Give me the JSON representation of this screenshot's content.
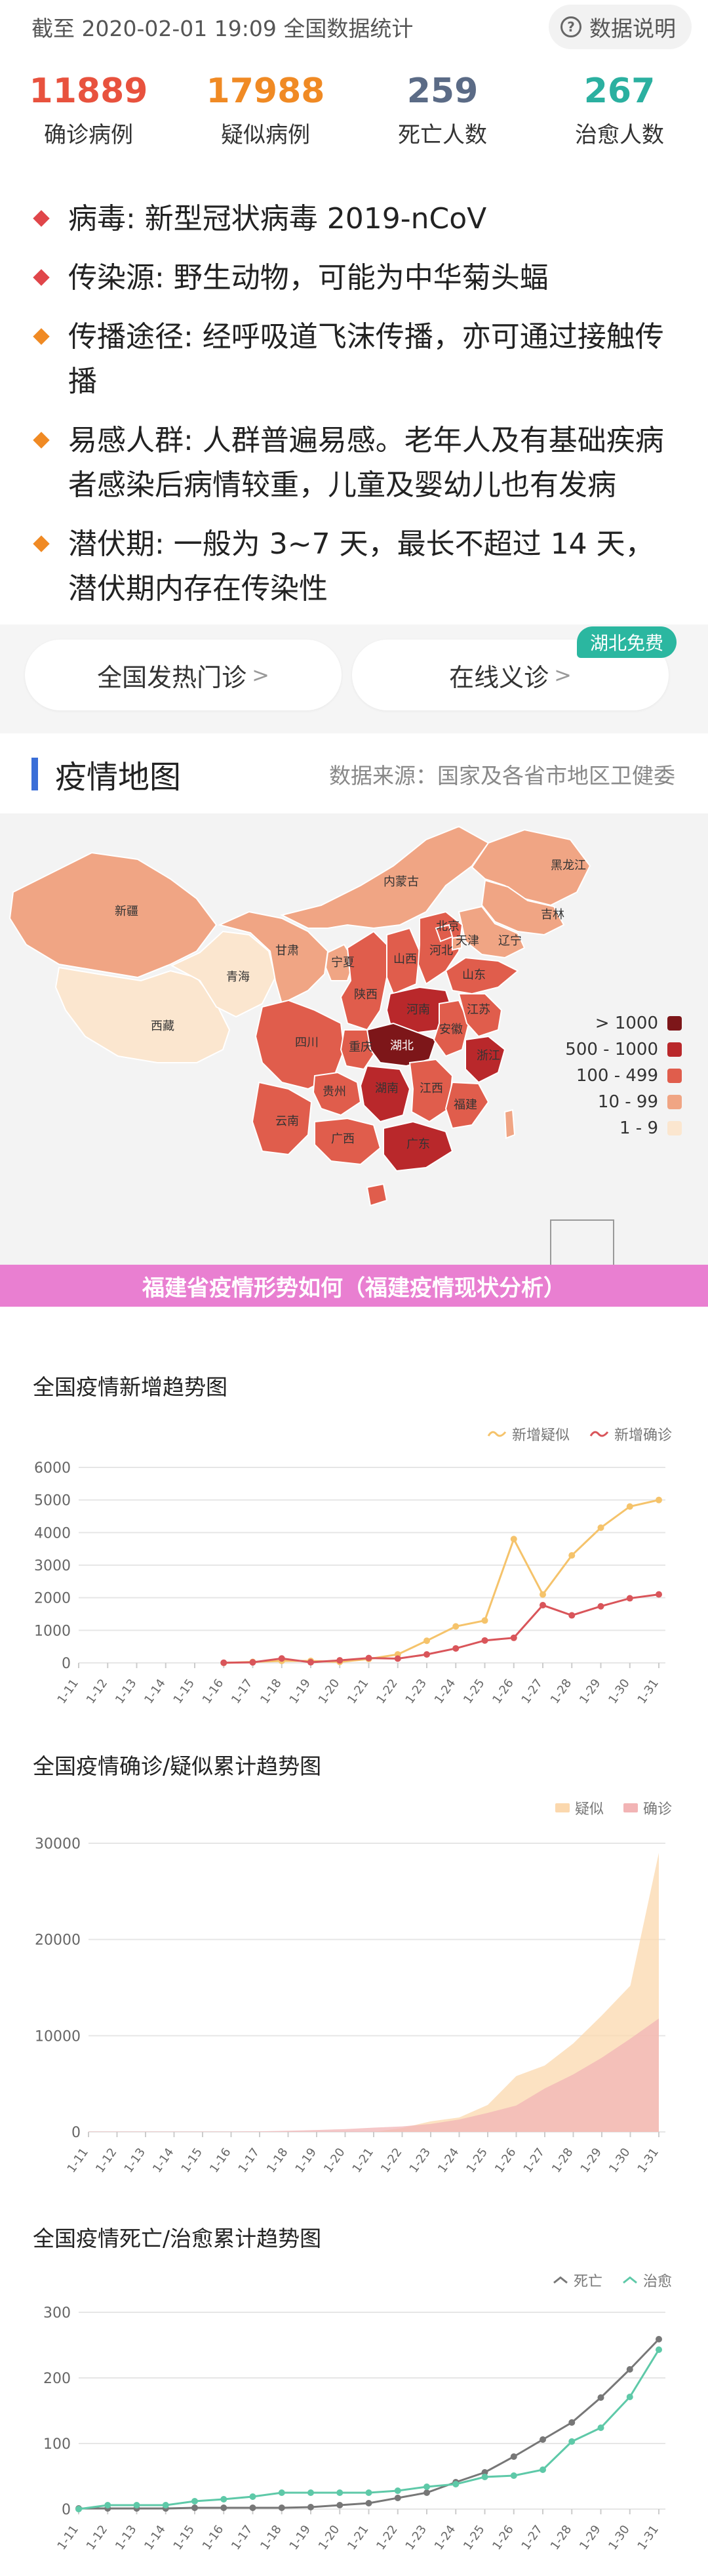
{
  "header": {
    "as_of": "截至 2020-02-01 19:09 全国数据统计",
    "help_label": "数据说明",
    "help_icon": "question-circle-icon"
  },
  "stats": [
    {
      "value": "11889",
      "label": "确诊病例",
      "color": "#e8523e"
    },
    {
      "value": "17988",
      "label": "疑似病例",
      "color": "#f08a24"
    },
    {
      "value": "259",
      "label": "死亡人数",
      "color": "#5b6b86"
    },
    {
      "value": "267",
      "label": "治愈人数",
      "color": "#2bb0a0"
    }
  ],
  "info": [
    {
      "text": "病毒: 新型冠状病毒 2019-nCoV",
      "color": "#e0464a"
    },
    {
      "text": "传染源: 野生动物，可能为中华菊头蝠",
      "color": "#e0464a"
    },
    {
      "text": "传播途径: 经呼吸道飞沫传播，亦可通过接触传播",
      "color": "#f08a24"
    },
    {
      "text": "易感人群: 人群普遍易感。老年人及有基础疾病者感染后病情较重，儿童及婴幼儿也有发病",
      "color": "#f08a24"
    },
    {
      "text": "潜伏期: 一般为 3~7 天，最长不超过 14 天，潜伏期内存在传染性",
      "color": "#f08a24"
    }
  ],
  "buttons": {
    "fever_clinic": "全国发热门诊",
    "online_consult": "在线义诊",
    "chevron": ">",
    "badge": "湖北免费"
  },
  "map": {
    "title": "疫情地图",
    "source": "数据来源：国家及各省市地区卫健委",
    "legend": [
      {
        "label": "> 1000",
        "color": "#7d1619"
      },
      {
        "label": "500 - 1000",
        "color": "#b9282b"
      },
      {
        "label": "100 - 499",
        "color": "#e05d4c"
      },
      {
        "label": "10 - 99",
        "color": "#f0a584"
      },
      {
        "label": "1 - 9",
        "color": "#fbe6cf"
      }
    ],
    "provinces": [
      {
        "name": "黑龙江",
        "level": 3
      },
      {
        "name": "吉林",
        "level": 3
      },
      {
        "name": "辽宁",
        "level": 3
      },
      {
        "name": "内蒙古",
        "level": 3
      },
      {
        "name": "新疆",
        "level": 3
      },
      {
        "name": "西藏",
        "level": 4
      },
      {
        "name": "青海",
        "level": 4
      },
      {
        "name": "甘肃",
        "level": 3
      },
      {
        "name": "宁夏",
        "level": 3
      },
      {
        "name": "陕西",
        "level": 2
      },
      {
        "name": "山西",
        "level": 2
      },
      {
        "name": "河北",
        "level": 2
      },
      {
        "name": "北京",
        "level": 2
      },
      {
        "name": "天津",
        "level": 3
      },
      {
        "name": "山东",
        "level": 2
      },
      {
        "name": "河南",
        "level": 1
      },
      {
        "name": "四川",
        "level": 2
      },
      {
        "name": "重庆",
        "level": 2
      },
      {
        "name": "湖北",
        "level": 0
      },
      {
        "name": "安徽",
        "level": 2
      },
      {
        "name": "江苏",
        "level": 2
      },
      {
        "name": "浙江",
        "level": 1
      },
      {
        "name": "贵州",
        "level": 2
      },
      {
        "name": "湖南",
        "level": 1
      },
      {
        "name": "江西",
        "level": 2
      },
      {
        "name": "福建",
        "level": 2
      },
      {
        "name": "云南",
        "level": 2
      },
      {
        "name": "广西",
        "level": 2
      },
      {
        "name": "广东",
        "level": 1
      }
    ]
  },
  "banner": "福建省疫情形势如何（福建疫情现状分析）",
  "chart_data": [
    {
      "type": "line",
      "title": "全国疫情新增趋势图",
      "categories": [
        "1-11",
        "1-12",
        "1-13",
        "1-14",
        "1-15",
        "1-16",
        "1-17",
        "1-18",
        "1-19",
        "1-20",
        "1-21",
        "1-22",
        "1-23",
        "1-24",
        "1-25",
        "1-26",
        "1-27",
        "1-28",
        "1-29",
        "1-30",
        "1-31"
      ],
      "ylim": [
        0,
        6000
      ],
      "yticks": [
        "0",
        "1000",
        "2000",
        "3000",
        "4000",
        "5000",
        "6000"
      ],
      "series": [
        {
          "name": "新增疑似",
          "color": "#f5c36b",
          "values": [
            null,
            null,
            null,
            null,
            null,
            0,
            30,
            60,
            60,
            30,
            120,
            260,
            680,
            1120,
            1300,
            3800,
            2100,
            3300,
            4150,
            4800,
            5000
          ]
        },
        {
          "name": "新增确诊",
          "color": "#d9555a",
          "values": [
            null,
            null,
            null,
            null,
            null,
            4,
            17,
            136,
            19,
            77,
            149,
            131,
            259,
            444,
            688,
            769,
            1771,
            1459,
            1737,
            1982,
            2102
          ]
        }
      ]
    },
    {
      "type": "area",
      "title": "全国疫情确诊/疑似累计趋势图",
      "categories": [
        "1-11",
        "1-12",
        "1-13",
        "1-14",
        "1-15",
        "1-16",
        "1-17",
        "1-18",
        "1-19",
        "1-20",
        "1-21",
        "1-22",
        "1-23",
        "1-24",
        "1-25",
        "1-26",
        "1-27",
        "1-28",
        "1-29",
        "1-30",
        "1-31"
      ],
      "ylim": [
        0,
        30000
      ],
      "yticks": [
        "0",
        "10000",
        "20000",
        "30000"
      ],
      "series": [
        {
          "name": "疑似",
          "color": "#fbd8ae",
          "values": [
            0,
            0,
            0,
            0,
            0,
            0,
            0,
            0,
            0,
            0,
            0,
            400,
            1100,
            1500,
            2800,
            5800,
            6900,
            9200,
            12100,
            15200,
            29000
          ]
        },
        {
          "name": "确诊",
          "color": "#f2b4b5",
          "values": [
            41,
            41,
            41,
            41,
            41,
            45,
            62,
            121,
            198,
            291,
            440,
            571,
            830,
            1287,
            1975,
            2744,
            4515,
            5974,
            7711,
            9692,
            11791
          ]
        }
      ]
    },
    {
      "type": "line",
      "title": "全国疫情死亡/治愈累计趋势图",
      "categories": [
        "1-11",
        "1-12",
        "1-13",
        "1-14",
        "1-15",
        "1-16",
        "1-17",
        "1-18",
        "1-19",
        "1-20",
        "1-21",
        "1-22",
        "1-23",
        "1-24",
        "1-25",
        "1-26",
        "1-27",
        "1-28",
        "1-29",
        "1-30",
        "1-31"
      ],
      "ylim": [
        0,
        300
      ],
      "yticks": [
        "0",
        "100",
        "200",
        "300"
      ],
      "series": [
        {
          "name": "死亡",
          "color": "#777777",
          "values": [
            1,
            1,
            1,
            1,
            2,
            2,
            2,
            2,
            3,
            6,
            9,
            17,
            25,
            41,
            56,
            80,
            106,
            132,
            170,
            213,
            259
          ]
        },
        {
          "name": "治愈",
          "color": "#5ec9a8",
          "values": [
            0,
            6,
            6,
            6,
            12,
            15,
            19,
            25,
            25,
            25,
            25,
            28,
            34,
            38,
            49,
            51,
            60,
            103,
            124,
            171,
            243
          ]
        }
      ]
    }
  ]
}
